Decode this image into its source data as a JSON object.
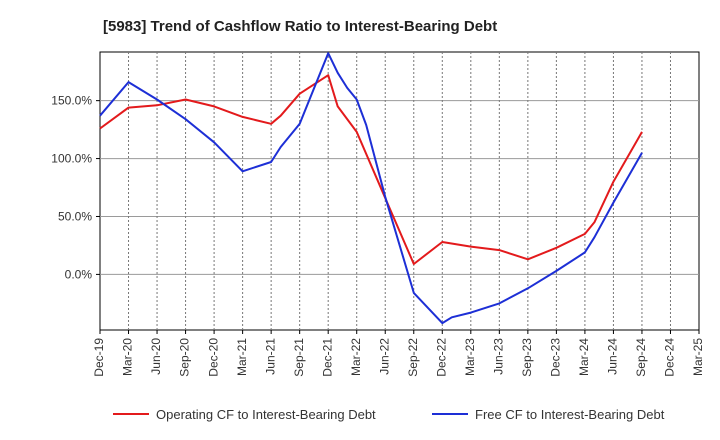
{
  "chart_data": {
    "type": "line",
    "title": "[5983]  Trend of Cashflow Ratio to Interest-Bearing Debt",
    "xlabel": "",
    "ylabel": "",
    "x_ticks": [
      "Dec-19",
      "Mar-20",
      "Jun-20",
      "Sep-20",
      "Dec-20",
      "Mar-21",
      "Jun-21",
      "Sep-21",
      "Dec-21",
      "Mar-22",
      "Jun-22",
      "Sep-22",
      "Dec-22",
      "Mar-23",
      "Jun-23",
      "Sep-23",
      "Dec-23",
      "Mar-24",
      "Jun-24",
      "Sep-24",
      "Dec-24",
      "Mar-25"
    ],
    "y_ticks": [
      {
        "value": 150,
        "label": "150.0%"
      },
      {
        "value": 100,
        "label": "100.0%"
      },
      {
        "value": 50,
        "label": "50.0%"
      },
      {
        "value": 0,
        "label": "0.0%"
      }
    ],
    "ylim": [
      -48,
      192
    ],
    "grid": {
      "x": "dotted-vertical",
      "y": "solid-horizontal"
    },
    "legend_position": "bottom",
    "series": [
      {
        "name": "Operating CF to Interest-Bearing Debt",
        "color": "#e31a1c",
        "x": [
          "Dec-19",
          "Mar-20",
          "Jun-20",
          "Sep-20",
          "Dec-20",
          "Mar-21",
          "Jun-21",
          "Jul-21",
          "Sep-21",
          "Dec-21",
          "Jan-22",
          "Mar-22",
          "Jun-22",
          "Sep-22",
          "Dec-22",
          "Mar-23",
          "Jun-23",
          "Sep-23",
          "Dec-23",
          "Mar-24",
          "Apr-24",
          "Jun-24",
          "Sep-24"
        ],
        "values": [
          126,
          144,
          146,
          151,
          145,
          136,
          130,
          137,
          156,
          172,
          145,
          123,
          66,
          9,
          28,
          24,
          21,
          13,
          23,
          35,
          45,
          80,
          123
        ]
      },
      {
        "name": "Free CF to Interest-Bearing Debt",
        "color": "#1d2fd6",
        "x": [
          "Dec-19",
          "Mar-20",
          "Jun-20",
          "Sep-20",
          "Dec-20",
          "Mar-21",
          "Jun-21",
          "Jul-21",
          "Sep-21",
          "Dec-21",
          "Jan-22",
          "Feb-22",
          "Mar-22",
          "Apr-22",
          "Jun-22",
          "Sep-22",
          "Dec-22",
          "Jan-23",
          "Mar-23",
          "Jun-23",
          "Sep-23",
          "Dec-23",
          "Mar-24",
          "Apr-24",
          "Jun-24",
          "Sep-24"
        ],
        "values": [
          137,
          166,
          151,
          134,
          114,
          89,
          97,
          110,
          130,
          191,
          174,
          161,
          151,
          129,
          67,
          -16,
          -42,
          -37,
          -33,
          -25,
          -12,
          3,
          19,
          32,
          62,
          105
        ]
      }
    ]
  }
}
